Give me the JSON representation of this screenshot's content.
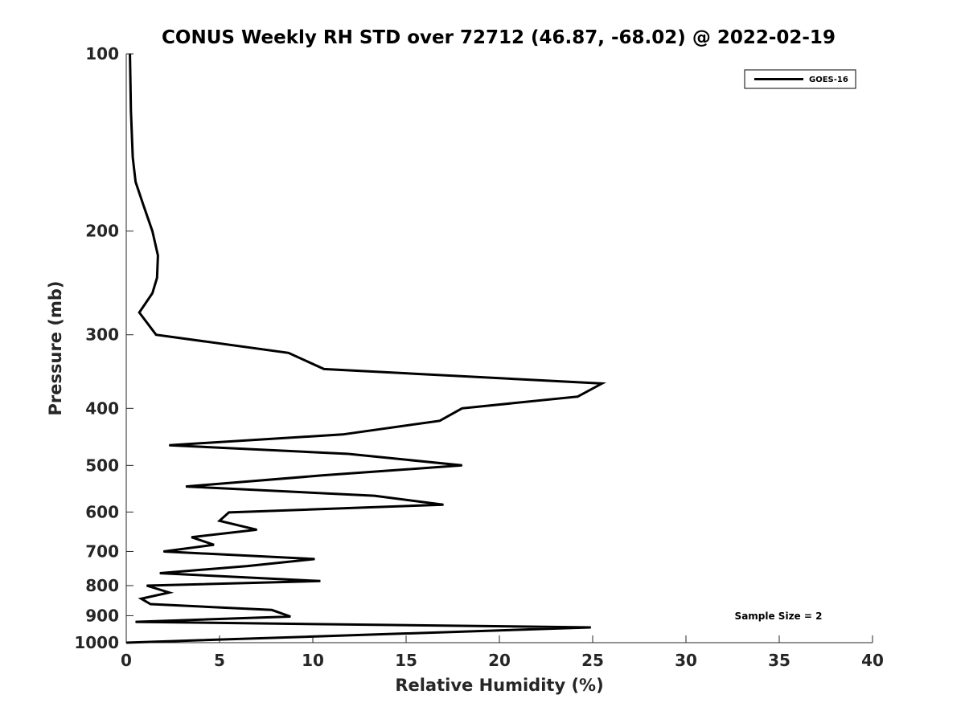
{
  "chart_data": {
    "type": "line",
    "title": "CONUS Weekly RH STD over 72712 (46.87, -68.02) @ 2022-02-19",
    "xlabel": "Relative Humidity (%)",
    "ylabel": "Pressure (mb)",
    "xlim": [
      0,
      40
    ],
    "ylim": [
      100,
      1000
    ],
    "y_scale": "log",
    "y_reversed": true,
    "x_ticks": [
      "0",
      "5",
      "10",
      "15",
      "20",
      "25",
      "30",
      "35",
      "40"
    ],
    "y_ticks": [
      "100",
      "200",
      "300",
      "400",
      "500",
      "600",
      "700",
      "800",
      "900",
      "1000"
    ],
    "grid": false,
    "legend_position": "top-right",
    "line_color": "#000000",
    "annotation": "Sample Size = 2",
    "series": [
      {
        "name": "GOES-16",
        "points": [
          [
            0.2,
            100
          ],
          [
            0.25,
            125
          ],
          [
            0.35,
            150
          ],
          [
            0.5,
            165
          ],
          [
            0.9,
            180
          ],
          [
            1.4,
            200
          ],
          [
            1.7,
            220
          ],
          [
            1.65,
            240
          ],
          [
            1.4,
            255
          ],
          [
            0.7,
            275
          ],
          [
            1.6,
            300
          ],
          [
            8.7,
            322
          ],
          [
            10.6,
            343
          ],
          [
            25.5,
            363
          ],
          [
            24.2,
            382
          ],
          [
            18.0,
            400
          ],
          [
            16.8,
            420
          ],
          [
            11.6,
            443
          ],
          [
            2.3,
            462
          ],
          [
            11.9,
            478
          ],
          [
            18.0,
            500
          ],
          [
            10.5,
            520
          ],
          [
            3.2,
            543
          ],
          [
            13.3,
            563
          ],
          [
            17.0,
            583
          ],
          [
            5.5,
            601
          ],
          [
            5.0,
            621
          ],
          [
            7.0,
            643
          ],
          [
            3.5,
            662
          ],
          [
            4.7,
            682
          ],
          [
            2.0,
            700
          ],
          [
            10.1,
            721
          ],
          [
            6.5,
            741
          ],
          [
            1.8,
            762
          ],
          [
            10.4,
            786
          ],
          [
            1.1,
            800
          ],
          [
            2.3,
            822
          ],
          [
            0.8,
            842
          ],
          [
            1.3,
            860
          ],
          [
            7.8,
            880
          ],
          [
            8.8,
            903
          ],
          [
            0.5,
            922
          ],
          [
            24.9,
            942
          ],
          [
            0.0,
            1000
          ]
        ]
      }
    ]
  }
}
